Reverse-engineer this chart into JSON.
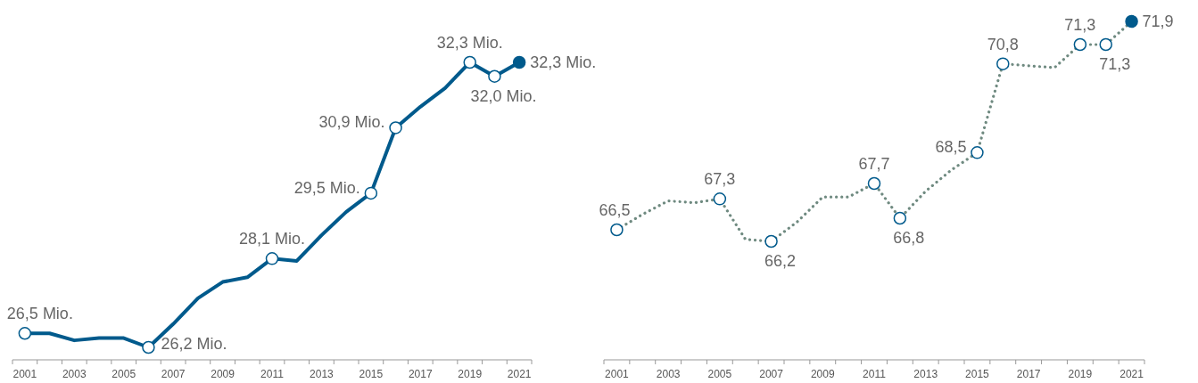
{
  "chart_data": [
    {
      "type": "line",
      "categories": [
        "2001",
        null,
        "2003",
        null,
        "2005",
        null,
        "2007",
        null,
        "2009",
        null,
        "2011",
        null,
        "2013",
        null,
        "2015",
        null,
        "2017",
        null,
        "2019",
        null,
        "2021"
      ],
      "tick_labels": "x",
      "line_style": "solid",
      "series": [
        {
          "color": "#005a8c",
          "values": [
            26.5,
            26.5,
            26.35,
            26.4,
            26.4,
            26.2,
            26.7,
            27.25,
            27.6,
            27.7,
            28.1,
            28.05,
            28.6,
            29.1,
            29.5,
            30.9,
            31.35,
            31.75,
            32.3,
            32.0,
            32.3
          ],
          "value_labels": [
            "26,5 Mio.",
            null,
            null,
            null,
            null,
            "26,2 Mio.",
            null,
            null,
            null,
            null,
            "28,1 Mio.",
            null,
            null,
            null,
            "29,5 Mio.",
            "30,9 Mio.",
            null,
            null,
            "32,3 Mio.",
            "32,0 Mio.",
            "32,3 Mio."
          ]
        }
      ]
    },
    {
      "type": "line",
      "categories": [
        "2001",
        null,
        "2003",
        null,
        "2005",
        null,
        "2007",
        null,
        "2009",
        null,
        "2011",
        null,
        "2013",
        null,
        "2015",
        null,
        "2017",
        null,
        "2019",
        null,
        "2021"
      ],
      "tick_labels": "x",
      "line_style": "dotted",
      "series": [
        {
          "color": "#6f8a80",
          "values": [
            66.5,
            66.9,
            67.25,
            67.2,
            67.3,
            66.25,
            66.2,
            66.7,
            67.35,
            67.35,
            67.7,
            66.8,
            67.5,
            68.05,
            68.5,
            70.8,
            70.75,
            70.7,
            71.3,
            71.3,
            71.9
          ],
          "value_labels": [
            "66,5",
            null,
            null,
            null,
            "67,3",
            null,
            "66,2",
            null,
            null,
            null,
            "67,7",
            "66,8",
            null,
            null,
            "68,5",
            "70,8",
            null,
            null,
            "71,3",
            "71,3",
            "71,9"
          ]
        }
      ]
    }
  ]
}
